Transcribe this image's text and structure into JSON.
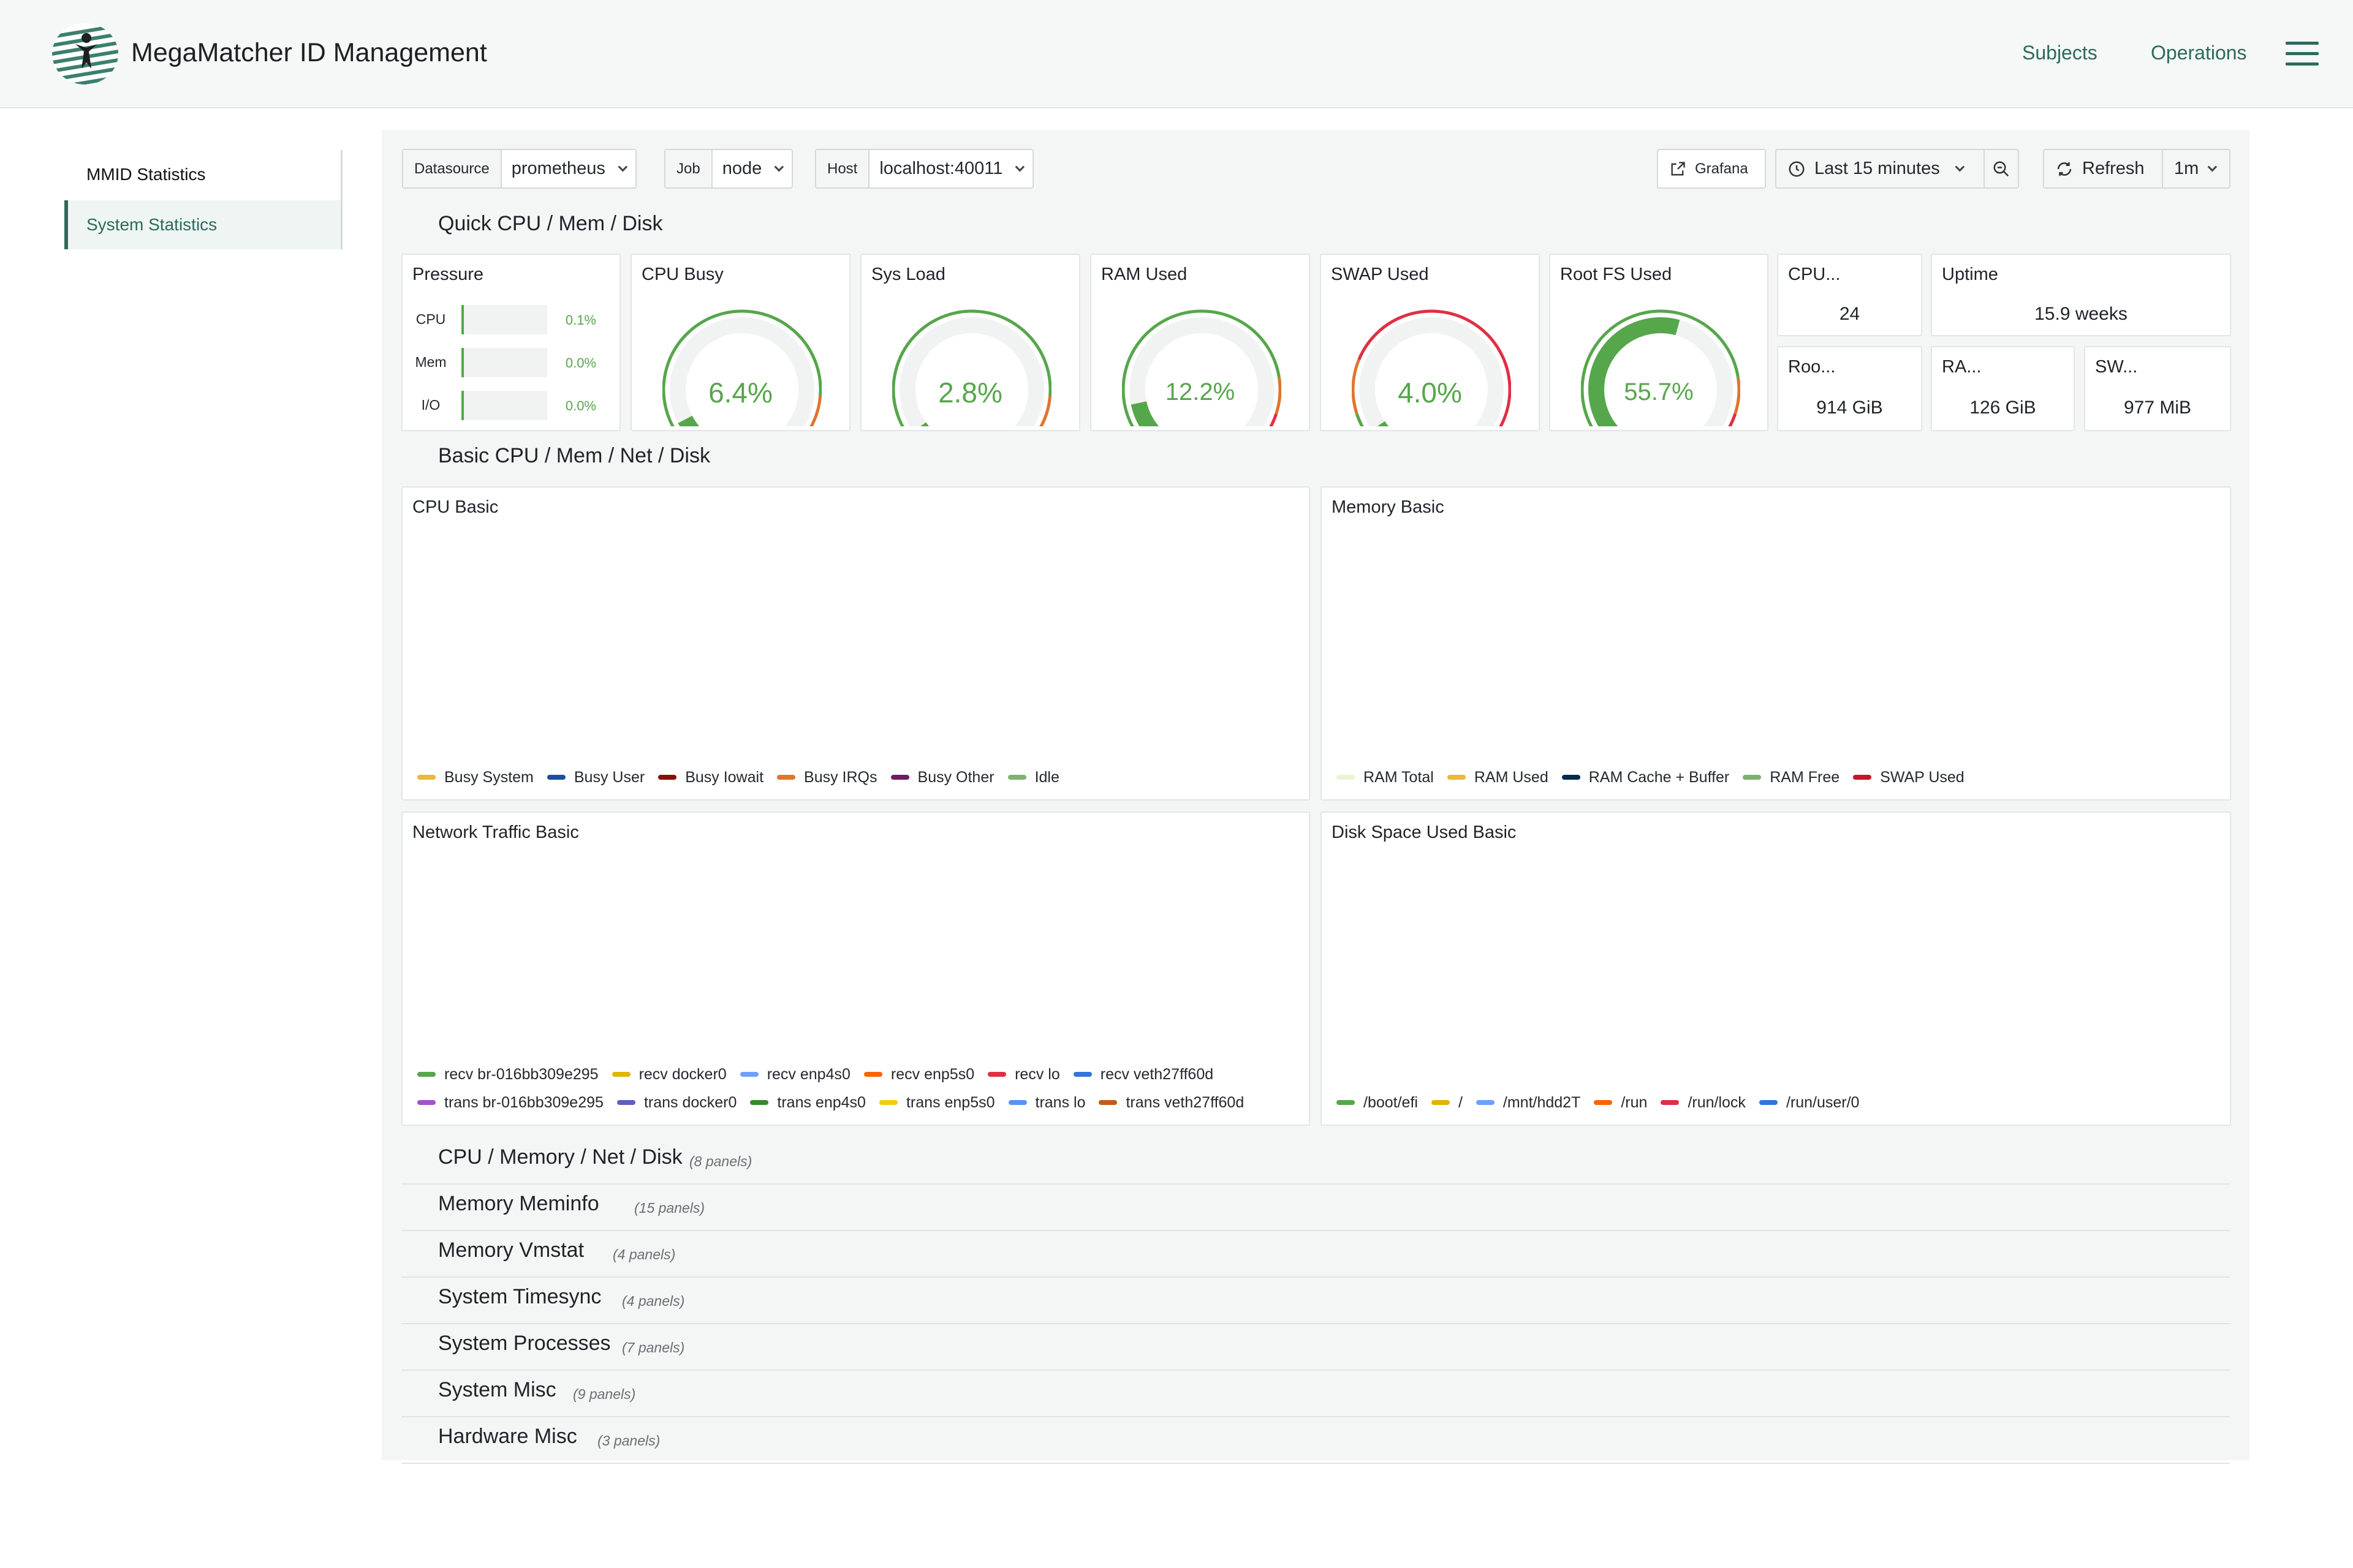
{
  "app": {
    "title": "MegaMatcher ID Management",
    "nav": [
      "Subjects",
      "Operations"
    ],
    "accent": "#2b6b5c"
  },
  "sidebar": {
    "heading": "MMID Statistics",
    "items": [
      {
        "label": "System Statistics",
        "active": true
      }
    ]
  },
  "toolbar": {
    "datasource": {
      "label": "Datasource",
      "value": "prometheus"
    },
    "job": {
      "label": "Job",
      "value": "node"
    },
    "host": {
      "label": "Host",
      "value": "localhost:40011"
    },
    "grafana_label": "Grafana",
    "time_range": "Last 15 minutes",
    "refresh_label": "Refresh",
    "refresh_interval": "1m"
  },
  "rows": {
    "quick": "Quick CPU / Mem / Disk",
    "basic": "Basic CPU / Mem / Net / Disk"
  },
  "pressure": {
    "title": "Pressure",
    "items": [
      {
        "label": "CPU",
        "value": "0.1%",
        "fraction": 0.001
      },
      {
        "label": "Mem",
        "value": "0.0%",
        "fraction": 0.0
      },
      {
        "label": "I/O",
        "value": "0.0%",
        "fraction": 0.0
      }
    ]
  },
  "gauges": [
    {
      "title": "CPU Busy",
      "value": "6.4%",
      "fraction": 0.064,
      "scheme": "busy"
    },
    {
      "title": "Sys Load",
      "value": "2.8%",
      "fraction": 0.028,
      "scheme": "busy"
    },
    {
      "title": "RAM Used",
      "value": "12.2%",
      "fraction": 0.122,
      "scheme": "ram"
    },
    {
      "title": "SWAP Used",
      "value": "4.0%",
      "fraction": 0.04,
      "scheme": "swap"
    },
    {
      "title": "Root FS Used",
      "value": "55.7%",
      "fraction": 0.557,
      "scheme": "ram"
    }
  ],
  "stats": {
    "cpu_cores": {
      "title": "CPU...",
      "value": "24"
    },
    "uptime": {
      "title": "Uptime",
      "value": "15.9 weeks"
    },
    "rootfs_total": {
      "title": "Roo...",
      "value": "914 GiB"
    },
    "ram_total": {
      "title": "RA...",
      "value": "126 GiB"
    },
    "swap_total": {
      "title": "SW...",
      "value": "977 MiB"
    }
  },
  "charts": {
    "cpu": {
      "title": "CPU Basic",
      "legend": [
        {
          "name": "Busy System",
          "color": "#eab839"
        },
        {
          "name": "Busy User",
          "color": "#1f4e9e"
        },
        {
          "name": "Busy Iowait",
          "color": "#890f02"
        },
        {
          "name": "Busy IRQs",
          "color": "#e0752d"
        },
        {
          "name": "Busy Other",
          "color": "#6d1f62"
        },
        {
          "name": "Idle",
          "color": "#7eb26d"
        }
      ]
    },
    "memory": {
      "title": "Memory Basic",
      "legend": [
        {
          "name": "RAM Total",
          "color": "#e9f4d5"
        },
        {
          "name": "RAM Used",
          "color": "#eab839"
        },
        {
          "name": "RAM Cache + Buffer",
          "color": "#052b51"
        },
        {
          "name": "RAM Free",
          "color": "#7eb26d"
        },
        {
          "name": "SWAP Used",
          "color": "#c4162a"
        }
      ]
    },
    "network": {
      "title": "Network Traffic Basic",
      "legend": [
        {
          "name": "recv br-016bb309e295",
          "color": "#56a64b"
        },
        {
          "name": "recv docker0",
          "color": "#e0b400"
        },
        {
          "name": "recv enp4s0",
          "color": "#6e9fff"
        },
        {
          "name": "recv enp5s0",
          "color": "#fa6400"
        },
        {
          "name": "recv lo",
          "color": "#e02f44"
        },
        {
          "name": "recv veth27ff60d",
          "color": "#3274d9"
        },
        {
          "name": "trans br-016bb309e295",
          "color": "#a352cc"
        },
        {
          "name": "trans docker0",
          "color": "#5f5fbf"
        },
        {
          "name": "trans enp4s0",
          "color": "#37872d"
        },
        {
          "name": "trans enp5s0",
          "color": "#f2cc0c"
        },
        {
          "name": "trans lo",
          "color": "#5794f2"
        },
        {
          "name": "trans veth27ff60d",
          "color": "#c15c17"
        }
      ]
    },
    "disk": {
      "title": "Disk Space Used Basic",
      "legend": [
        {
          "name": "/boot/efi",
          "color": "#56a64b"
        },
        {
          "name": "/",
          "color": "#e0b400"
        },
        {
          "name": "/mnt/hdd2T",
          "color": "#6e9fff"
        },
        {
          "name": "/run",
          "color": "#fa6400"
        },
        {
          "name": "/run/lock",
          "color": "#e02f44"
        },
        {
          "name": "/run/user/0",
          "color": "#3274d9"
        }
      ]
    }
  },
  "collapsed_rows": [
    {
      "title": "CPU / Memory / Net / Disk",
      "count": "(8 panels)"
    },
    {
      "title": "Memory Meminfo",
      "count": "(15 panels)"
    },
    {
      "title": "Memory Vmstat",
      "count": "(4 panels)"
    },
    {
      "title": "System Timesync",
      "count": "(4 panels)"
    },
    {
      "title": "System Processes",
      "count": "(7 panels)"
    },
    {
      "title": "System Misc",
      "count": "(9 panels)"
    },
    {
      "title": "Hardware Misc",
      "count": "(3 panels)"
    }
  ]
}
